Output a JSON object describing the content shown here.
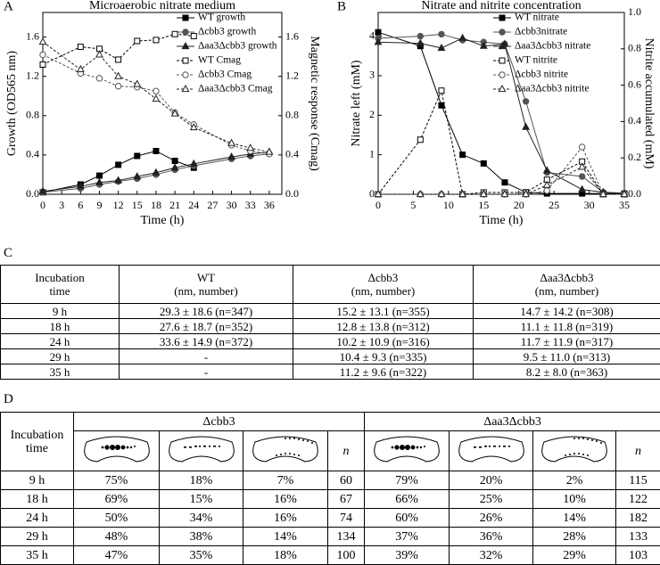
{
  "chart_data": [
    {
      "type": "line",
      "panel": "A",
      "title": "Microaerobic nitrate medium",
      "xlabel": "Time (h)",
      "ylabel": "Growth (OD565 nm)",
      "y2label": "Magnetic response (Cmag)",
      "xlim": [
        0,
        38
      ],
      "xticks": [
        0,
        3,
        6,
        9,
        12,
        15,
        18,
        21,
        24,
        27,
        30,
        33,
        36
      ],
      "ylim": [
        0,
        1.85
      ],
      "yticks": [
        {
          "value": 0,
          "label": "0.0"
        },
        0.4,
        0.8,
        1.2,
        1.6
      ],
      "y2lim": [
        0,
        1.85
      ],
      "y2ticks": [
        {
          "value": 0,
          "label": "0.0"
        },
        0.4,
        0.8,
        1.2,
        1.6
      ],
      "legend": "upper right",
      "series": [
        {
          "name": "WT growth",
          "color": "#000000",
          "marker": "square",
          "filled": true,
          "dashed": false,
          "x": [
            0,
            6,
            9,
            12,
            15,
            18,
            21,
            24
          ],
          "values": [
            0.02,
            0.1,
            0.19,
            0.3,
            0.39,
            0.44,
            0.34,
            0.27
          ]
        },
        {
          "name": "Δcbb3 growth",
          "color": "#555555",
          "marker": "circle",
          "filled": true,
          "dashed": false,
          "x": [
            0,
            6,
            9,
            12,
            15,
            18,
            21,
            24,
            30,
            33,
            36
          ],
          "values": [
            0.02,
            0.06,
            0.1,
            0.13,
            0.16,
            0.2,
            0.25,
            0.29,
            0.36,
            0.39,
            0.41
          ]
        },
        {
          "name": "Δaa3Δcbb3 growth",
          "color": "#222222",
          "marker": "triangle",
          "filled": true,
          "dashed": false,
          "x": [
            0,
            6,
            9,
            12,
            15,
            18,
            21,
            24,
            30,
            33,
            36
          ],
          "values": [
            0.03,
            0.08,
            0.12,
            0.14,
            0.18,
            0.22,
            0.27,
            0.31,
            0.38,
            0.41,
            0.43
          ]
        },
        {
          "name": "WT Cmag",
          "color": "#000000",
          "marker": "square",
          "filled": false,
          "dashed": true,
          "axis": "y2",
          "x": [
            0,
            6,
            9,
            12,
            15,
            18,
            21,
            24
          ],
          "values": [
            1.32,
            1.5,
            1.48,
            1.37,
            1.56,
            1.57,
            1.63,
            1.61
          ]
        },
        {
          "name": "Δcbb3 Cmag",
          "color": "#555555",
          "marker": "circle",
          "filled": false,
          "dashed": true,
          "axis": "y2",
          "x": [
            0,
            6,
            9,
            12,
            15,
            18,
            21,
            24,
            30,
            33,
            36
          ],
          "values": [
            1.42,
            1.23,
            1.18,
            1.1,
            1.09,
            1.05,
            0.83,
            0.71,
            0.5,
            0.44,
            0.41
          ]
        },
        {
          "name": "Δaa3Δcbb3 Cmag",
          "color": "#222222",
          "marker": "triangle",
          "filled": false,
          "dashed": true,
          "axis": "y2",
          "x": [
            0,
            6,
            9,
            12,
            15,
            18,
            21,
            24,
            30,
            33,
            36
          ],
          "values": [
            1.55,
            1.27,
            1.42,
            1.2,
            1.12,
            0.97,
            0.82,
            0.68,
            0.52,
            0.47,
            0.43
          ]
        }
      ]
    },
    {
      "type": "line",
      "panel": "B",
      "title": "Nitrate and nitrite concentration",
      "xlabel": "Time (h)",
      "ylabel": "Nitrate left (mM)",
      "y2label": "Nitrite accumulated (mM)",
      "xlim": [
        0,
        35
      ],
      "xticks": [
        0,
        5,
        10,
        15,
        20,
        25,
        30,
        35
      ],
      "ylim": [
        0,
        4.6
      ],
      "yticks": [
        0,
        1,
        2,
        3,
        4
      ],
      "y2lim": [
        0,
        1
      ],
      "y2ticks": [
        {
          "value": 0,
          "label": "0.0"
        },
        0.2,
        0.4,
        0.6,
        0.8,
        {
          "value": 1,
          "label": "1.0"
        }
      ],
      "legend": "upper right",
      "series": [
        {
          "name": "WT nitrate",
          "color": "#000000",
          "marker": "square",
          "filled": true,
          "dashed": false,
          "x": [
            0,
            6,
            9,
            12,
            15,
            18,
            21,
            24,
            29,
            32,
            35
          ],
          "values": [
            4.1,
            3.75,
            2.25,
            1.0,
            0.78,
            0.3,
            0.05,
            0.02,
            0.02,
            0.02,
            0.02
          ]
        },
        {
          "name": "Δcbb3nitrate",
          "color": "#555555",
          "marker": "circle",
          "filled": true,
          "dashed": false,
          "x": [
            0,
            6,
            9,
            12,
            15,
            18,
            21,
            24,
            29,
            32,
            35
          ],
          "values": [
            3.95,
            4.0,
            4.05,
            3.9,
            3.85,
            3.8,
            2.35,
            0.55,
            0.45,
            0.05,
            0.03
          ]
        },
        {
          "name": "Δaa3Δcbb3 nitrate",
          "color": "#222222",
          "marker": "triangle",
          "filled": true,
          "dashed": false,
          "x": [
            0,
            6,
            9,
            12,
            15,
            18,
            21,
            24,
            29,
            32,
            35
          ],
          "values": [
            3.85,
            3.82,
            3.7,
            3.95,
            3.75,
            3.8,
            1.7,
            0.6,
            0.12,
            0.05,
            0.02
          ]
        },
        {
          "name": "WT nitrite",
          "color": "#000000",
          "marker": "square",
          "filled": false,
          "dashed": true,
          "axis": "y2",
          "x": [
            0,
            6,
            9,
            12,
            15,
            18,
            21,
            24,
            29,
            32,
            35
          ],
          "values": [
            0.0,
            0.3,
            0.57,
            0.0,
            0.01,
            0.01,
            0.01,
            0.08,
            0.18,
            0.0,
            0.0
          ]
        },
        {
          "name": "Δcbb3 nitrite",
          "color": "#555555",
          "marker": "circle",
          "filled": false,
          "dashed": true,
          "axis": "y2",
          "x": [
            0,
            6,
            9,
            12,
            15,
            18,
            21,
            24,
            29,
            32,
            35
          ],
          "values": [
            0,
            0,
            0,
            0,
            0,
            0,
            0,
            0.02,
            0.26,
            0.0,
            0
          ]
        },
        {
          "name": "Δaa3Δcbb3 nitrite",
          "color": "#222222",
          "marker": "triangle",
          "filled": false,
          "dashed": true,
          "axis": "y2",
          "x": [
            0,
            6,
            9,
            12,
            15,
            18,
            21,
            24,
            29,
            32,
            35
          ],
          "values": [
            0,
            0,
            0,
            0,
            0,
            0,
            0,
            0.05,
            0.15,
            0.0,
            0
          ]
        }
      ]
    }
  ],
  "table_c": {
    "panel": "C",
    "header": [
      "Incubation time",
      "WT",
      "Δcbb3",
      "Δaa3Δcbb3"
    ],
    "units": [
      "(nm, number)",
      "(nm, number)",
      "(nm, number)"
    ],
    "rows": [
      [
        "9 h",
        "29.3 ± 18.6 (n=347)",
        "15.2 ± 13.1 (n=355)",
        "14.7 ± 14.2 (n=308)"
      ],
      [
        "18 h",
        "27.6 ± 18.7 (n=352)",
        "12.8 ± 13.8 (n=312)",
        "11.1 ± 11.8 (n=319)"
      ],
      [
        "24 h",
        "33.6 ± 14.9 (n=372)",
        "10.2 ± 10.9 (n=316)",
        "11.7 ± 11.9 (n=317)"
      ],
      [
        "29 h",
        "-",
        "10.4 ± 9.3 (n=335)",
        "9.5 ± 11.0 (n=313)"
      ],
      [
        "35 h",
        "-",
        "11.2 ± 9.6 (n=322)",
        "8.2 ± 8.0 (n=363)"
      ]
    ]
  },
  "table_d": {
    "panel": "D",
    "header": "Incubation time",
    "groups": [
      "Δcbb3",
      "Δaa3Δcbb3"
    ],
    "n_headers": [
      "n",
      "n"
    ],
    "rows": [
      [
        "9 h",
        "75%",
        "18%",
        "7%",
        "60",
        "79%",
        "20%",
        "2%",
        "115"
      ],
      [
        "18 h",
        "69%",
        "15%",
        "16%",
        "67",
        "66%",
        "25%",
        "10%",
        "122"
      ],
      [
        "24 h",
        "50%",
        "34%",
        "16%",
        "74",
        "60%",
        "26%",
        "14%",
        "182"
      ],
      [
        "29 h",
        "48%",
        "38%",
        "14%",
        "134",
        "37%",
        "36%",
        "28%",
        "133"
      ],
      [
        "35 h",
        "47%",
        "35%",
        "18%",
        "100",
        "39%",
        "32%",
        "29%",
        "103"
      ]
    ]
  }
}
